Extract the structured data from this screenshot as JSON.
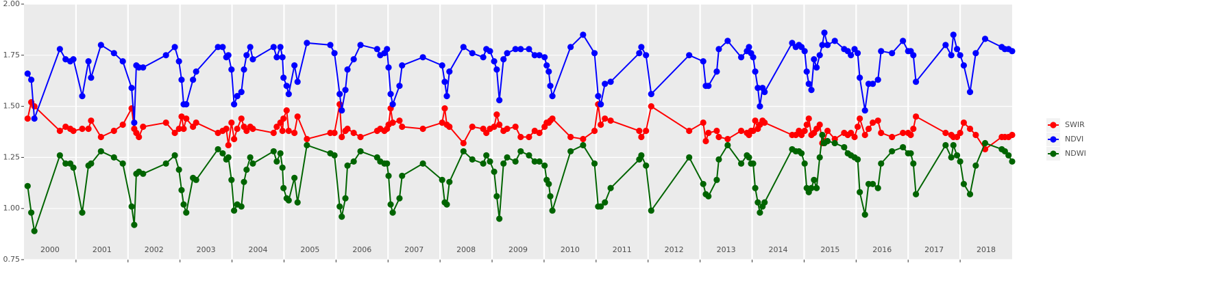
{
  "chart_data": {
    "type": "line",
    "x": [
      2000.07,
      2000.14,
      2000.2,
      2000.69,
      2000.8,
      2000.89,
      2000.95,
      2001.12,
      2001.24,
      2001.29,
      2001.48,
      2001.73,
      2001.9,
      2002.07,
      2002.12,
      2002.16,
      2002.21,
      2002.29,
      2002.73,
      2002.9,
      2002.98,
      2003.03,
      2003.07,
      2003.12,
      2003.25,
      2003.31,
      2003.73,
      2003.82,
      2003.89,
      2003.93,
      2003.99,
      2004.04,
      2004.1,
      2004.18,
      2004.23,
      2004.28,
      2004.35,
      2004.4,
      2004.8,
      2004.86,
      2004.93,
      2004.97,
      2004.99,
      2005.05,
      2005.09,
      2005.2,
      2005.26,
      2005.44,
      2005.89,
      2005.97,
      2006.07,
      2006.11,
      2006.18,
      2006.22,
      2006.34,
      2006.47,
      2006.79,
      2006.85,
      2006.93,
      2006.98,
      2007.01,
      2007.05,
      2007.09,
      2007.22,
      2007.27,
      2007.67,
      2008.04,
      2008.09,
      2008.13,
      2008.18,
      2008.45,
      2008.62,
      2008.83,
      2008.89,
      2008.96,
      2009.04,
      2009.09,
      2009.14,
      2009.22,
      2009.29,
      2009.45,
      2009.55,
      2009.71,
      2009.82,
      2009.91,
      2010.01,
      2010.05,
      2010.09,
      2010.12,
      2010.16,
      2010.51,
      2010.75,
      2010.97,
      2011.04,
      2011.09,
      2011.17,
      2011.28,
      2011.83,
      2011.87,
      2011.96,
      2012.06,
      2012.79,
      2013.06,
      2013.11,
      2013.16,
      2013.32,
      2013.36,
      2013.53,
      2013.79,
      2013.9,
      2013.94,
      2013.98,
      2014.02,
      2014.06,
      2014.11,
      2014.15,
      2014.2,
      2014.24,
      2014.77,
      2014.84,
      2014.9,
      2014.95,
      2015.01,
      2015.05,
      2015.09,
      2015.14,
      2015.19,
      2015.24,
      2015.3,
      2015.35,
      2015.39,
      2015.45,
      2015.59,
      2015.77,
      2015.84,
      2015.9,
      2015.97,
      2016.03,
      2016.07,
      2016.17,
      2016.24,
      2016.32,
      2016.42,
      2016.48,
      2016.69,
      2016.9,
      2017.0,
      2017.05,
      2017.1,
      2017.15,
      2017.72,
      2017.83,
      2017.87,
      2017.94,
      2018.0,
      2018.07,
      2018.19,
      2018.3,
      2018.48,
      2018.8,
      2018.86,
      2018.93,
      2019.0
    ],
    "series": [
      {
        "name": "SWIR",
        "color": "#ff0000",
        "values": [
          1.44,
          1.52,
          1.5,
          1.38,
          1.4,
          1.39,
          1.38,
          1.39,
          1.39,
          1.43,
          1.35,
          1.38,
          1.41,
          1.49,
          1.39,
          1.37,
          1.35,
          1.4,
          1.42,
          1.37,
          1.39,
          1.45,
          1.39,
          1.44,
          1.4,
          1.42,
          1.37,
          1.38,
          1.39,
          1.31,
          1.42,
          1.34,
          1.39,
          1.44,
          1.4,
          1.38,
          1.4,
          1.39,
          1.37,
          1.4,
          1.42,
          1.38,
          1.44,
          1.48,
          1.38,
          1.37,
          1.45,
          1.34,
          1.37,
          1.37,
          1.51,
          1.35,
          1.38,
          1.39,
          1.37,
          1.35,
          1.38,
          1.39,
          1.38,
          1.39,
          1.41,
          1.49,
          1.42,
          1.43,
          1.4,
          1.39,
          1.42,
          1.49,
          1.41,
          1.4,
          1.32,
          1.4,
          1.39,
          1.37,
          1.39,
          1.4,
          1.46,
          1.41,
          1.38,
          1.39,
          1.4,
          1.35,
          1.35,
          1.38,
          1.37,
          1.4,
          1.42,
          1.42,
          1.43,
          1.44,
          1.35,
          1.34,
          1.38,
          1.51,
          1.41,
          1.44,
          1.43,
          1.38,
          1.35,
          1.38,
          1.5,
          1.38,
          1.42,
          1.33,
          1.37,
          1.38,
          1.35,
          1.34,
          1.38,
          1.37,
          1.36,
          1.38,
          1.38,
          1.43,
          1.39,
          1.41,
          1.43,
          1.42,
          1.36,
          1.36,
          1.38,
          1.36,
          1.38,
          1.41,
          1.44,
          1.36,
          1.37,
          1.39,
          1.41,
          1.32,
          1.33,
          1.38,
          1.34,
          1.37,
          1.36,
          1.37,
          1.35,
          1.4,
          1.44,
          1.36,
          1.39,
          1.42,
          1.43,
          1.37,
          1.35,
          1.37,
          1.37,
          1.36,
          1.39,
          1.45,
          1.37,
          1.36,
          1.35,
          1.35,
          1.37,
          1.42,
          1.39,
          1.36,
          1.29,
          1.35,
          1.35,
          1.35,
          1.36
        ]
      },
      {
        "name": "NDVI",
        "color": "#0000ff",
        "values": [
          1.66,
          1.63,
          1.44,
          1.78,
          1.73,
          1.72,
          1.73,
          1.55,
          1.72,
          1.64,
          1.8,
          1.76,
          1.72,
          1.59,
          1.42,
          1.7,
          1.69,
          1.69,
          1.75,
          1.79,
          1.72,
          1.63,
          1.51,
          1.51,
          1.63,
          1.67,
          1.79,
          1.79,
          1.74,
          1.75,
          1.68,
          1.51,
          1.55,
          1.57,
          1.68,
          1.75,
          1.79,
          1.73,
          1.79,
          1.74,
          1.79,
          1.74,
          1.64,
          1.6,
          1.56,
          1.7,
          1.62,
          1.81,
          1.8,
          1.76,
          1.56,
          1.48,
          1.58,
          1.68,
          1.73,
          1.8,
          1.78,
          1.75,
          1.76,
          1.78,
          1.69,
          1.56,
          1.51,
          1.6,
          1.7,
          1.74,
          1.7,
          1.62,
          1.55,
          1.67,
          1.79,
          1.76,
          1.74,
          1.78,
          1.77,
          1.72,
          1.68,
          1.53,
          1.73,
          1.76,
          1.78,
          1.78,
          1.78,
          1.75,
          1.75,
          1.74,
          1.7,
          1.67,
          1.6,
          1.55,
          1.79,
          1.85,
          1.76,
          1.55,
          1.51,
          1.61,
          1.62,
          1.76,
          1.79,
          1.75,
          1.56,
          1.75,
          1.72,
          1.6,
          1.6,
          1.67,
          1.78,
          1.82,
          1.74,
          1.77,
          1.79,
          1.76,
          1.74,
          1.67,
          1.59,
          1.5,
          1.59,
          1.57,
          1.81,
          1.79,
          1.8,
          1.79,
          1.77,
          1.67,
          1.61,
          1.58,
          1.73,
          1.69,
          1.75,
          1.8,
          1.86,
          1.8,
          1.82,
          1.78,
          1.77,
          1.75,
          1.78,
          1.76,
          1.64,
          1.48,
          1.61,
          1.61,
          1.63,
          1.77,
          1.76,
          1.82,
          1.77,
          1.77,
          1.75,
          1.62,
          1.8,
          1.75,
          1.85,
          1.78,
          1.75,
          1.7,
          1.57,
          1.76,
          1.83,
          1.79,
          1.78,
          1.78,
          1.77
        ]
      },
      {
        "name": "NDWI",
        "color": "#006400",
        "values": [
          1.11,
          0.98,
          0.89,
          1.26,
          1.22,
          1.22,
          1.2,
          0.98,
          1.21,
          1.22,
          1.28,
          1.25,
          1.22,
          1.01,
          0.92,
          1.17,
          1.18,
          1.17,
          1.22,
          1.26,
          1.19,
          1.09,
          1.02,
          0.98,
          1.15,
          1.14,
          1.29,
          1.27,
          1.24,
          1.25,
          1.14,
          0.99,
          1.02,
          1.01,
          1.13,
          1.19,
          1.25,
          1.22,
          1.28,
          1.23,
          1.27,
          1.2,
          1.1,
          1.05,
          1.04,
          1.15,
          1.03,
          1.31,
          1.27,
          1.26,
          1.01,
          0.96,
          1.05,
          1.21,
          1.23,
          1.28,
          1.25,
          1.23,
          1.22,
          1.22,
          1.16,
          1.02,
          0.98,
          1.05,
          1.16,
          1.22,
          1.14,
          1.03,
          1.02,
          1.13,
          1.28,
          1.24,
          1.22,
          1.26,
          1.23,
          1.18,
          1.06,
          0.95,
          1.22,
          1.25,
          1.23,
          1.28,
          1.26,
          1.23,
          1.23,
          1.21,
          1.14,
          1.12,
          1.06,
          0.99,
          1.28,
          1.31,
          1.22,
          1.01,
          1.01,
          1.03,
          1.1,
          1.24,
          1.26,
          1.21,
          0.99,
          1.25,
          1.12,
          1.07,
          1.06,
          1.14,
          1.24,
          1.31,
          1.22,
          1.26,
          1.25,
          1.22,
          1.22,
          1.1,
          1.03,
          0.98,
          1.01,
          1.03,
          1.29,
          1.28,
          1.28,
          1.27,
          1.22,
          1.1,
          1.08,
          1.1,
          1.14,
          1.1,
          1.25,
          1.36,
          1.32,
          1.33,
          1.32,
          1.3,
          1.27,
          1.26,
          1.25,
          1.24,
          1.08,
          0.97,
          1.12,
          1.12,
          1.1,
          1.22,
          1.28,
          1.3,
          1.27,
          1.27,
          1.22,
          1.07,
          1.31,
          1.25,
          1.31,
          1.26,
          1.23,
          1.12,
          1.07,
          1.21,
          1.32,
          1.29,
          1.28,
          1.26,
          1.23
        ]
      }
    ],
    "year_labels": [
      "2000",
      "2001",
      "2002",
      "2003",
      "2004",
      "2005",
      "2006",
      "2007",
      "2008",
      "2009",
      "2010",
      "2011",
      "2012",
      "2013",
      "2014",
      "2015",
      "2016",
      "2017",
      "2018"
    ],
    "xlim": [
      2000,
      2019
    ],
    "xticks": [
      2001,
      2002,
      2003,
      2004,
      2005,
      2006,
      2007,
      2008,
      2009,
      2010,
      2011,
      2012,
      2013,
      2014,
      2015,
      2016,
      2017,
      2018
    ],
    "ylim": [
      0.75,
      2.0
    ],
    "yticks": [
      {
        "value": 0.75,
        "label": "0.75"
      },
      {
        "value": 1.0,
        "label": "1.00"
      },
      {
        "value": 1.25,
        "label": "1.25"
      },
      {
        "value": 1.5,
        "label": "1.50"
      },
      {
        "value": 1.75,
        "label": "1.75"
      },
      {
        "value": 2.0,
        "label": "2.00"
      }
    ],
    "grid": true,
    "legend": "right"
  }
}
